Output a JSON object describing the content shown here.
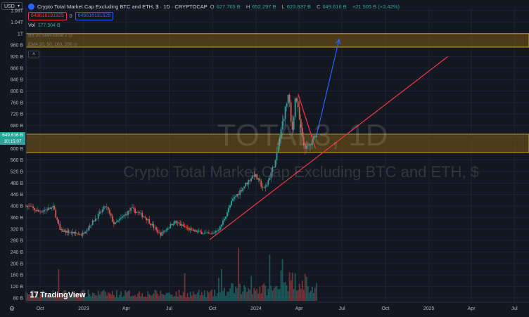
{
  "header": {
    "currency": "USD",
    "title": "Crypto Total Market Cap Excluding BTC and ETH, $ · 1D · CRYPTOCAP",
    "ohlc": [
      {
        "k": "O",
        "v": "627.765 B"
      },
      {
        "k": "H",
        "v": "652.297 B"
      },
      {
        "k": "L",
        "v": "623.837 B"
      },
      {
        "k": "C",
        "v": "649.616 B"
      },
      {
        "k": "",
        "v": "+21.505 B (+3.42%)"
      }
    ],
    "sell_box": "649616191925",
    "spread": "0",
    "buy_box": "649616191925",
    "vol_label": "Vol",
    "vol_value": "177.904 B",
    "indicator_bb": "BB 20 SMA close 2",
    "indicator_ema": "EMA 20, 50, 100, 200",
    "collapse_icon": "chevron-up-icon"
  },
  "watermark": {
    "symbol": "TOTAL3, 1D",
    "description": "Crypto Total Market Cap Excluding BTC and ETH, $"
  },
  "price_tag": {
    "price": "649.616 B",
    "countdown": "10:15:07"
  },
  "logo": "TradingView",
  "colors": {
    "up": "#26a69a",
    "down": "#ef5350",
    "zone": "#7a5a11",
    "zone_border": "#d9a520",
    "trendline": "#f23645",
    "projection": "#2962ff",
    "background": "#131722"
  },
  "chart_data": {
    "type": "candlestick",
    "title": "Crypto Total Market Cap Excluding BTC and ETH, $",
    "x_ticks": [
      "Oct",
      "2023",
      "Apr",
      "Jul",
      "Oct",
      "2024",
      "Apr",
      "Jul",
      "Oct",
      "2025",
      "Apr",
      "Jul"
    ],
    "y_ticks": [
      "80 B",
      "120 B",
      "160 B",
      "200 B",
      "240 B",
      "280 B",
      "320 B",
      "360 B",
      "400 B",
      "440 B",
      "480 B",
      "520 B",
      "560 B",
      "600 B",
      "640 B",
      "680 B",
      "720 B",
      "760 B",
      "800 B",
      "840 B",
      "880 B",
      "920 B",
      "960 B",
      "1T",
      "1.04T",
      "1.08T"
    ],
    "ylim": [
      65,
      1090
    ],
    "timeline_start": "2022-09-01",
    "timeline_end": "2025-08-01",
    "price_path": [
      [
        "2022-09-01",
        405
      ],
      [
        "2022-10-01",
        380
      ],
      [
        "2022-11-01",
        395
      ],
      [
        "2022-11-15",
        315
      ],
      [
        "2022-12-31",
        300
      ],
      [
        "2023-01-31",
        360
      ],
      [
        "2023-02-20",
        400
      ],
      [
        "2023-03-10",
        335
      ],
      [
        "2023-04-15",
        390
      ],
      [
        "2023-05-15",
        360
      ],
      [
        "2023-06-15",
        300
      ],
      [
        "2023-07-15",
        345
      ],
      [
        "2023-08-20",
        315
      ],
      [
        "2023-10-01",
        300
      ],
      [
        "2023-10-20",
        325
      ],
      [
        "2023-11-15",
        420
      ],
      [
        "2023-12-10",
        470
      ],
      [
        "2023-12-31",
        510
      ],
      [
        "2024-01-22",
        455
      ],
      [
        "2024-02-15",
        560
      ],
      [
        "2024-03-01",
        700
      ],
      [
        "2024-03-13",
        790
      ],
      [
        "2024-03-20",
        650
      ],
      [
        "2024-03-28",
        790
      ],
      [
        "2024-04-12",
        620
      ],
      [
        "2024-04-20",
        600
      ],
      [
        "2024-05-01",
        620
      ],
      [
        "2024-05-08",
        650
      ]
    ],
    "volume_scale_note": "relative",
    "support_zone": [
      586,
      650
    ],
    "upper_zone": [
      953,
      1000
    ],
    "trendline": {
      "from": [
        "2023-09-25",
        283
      ],
      "to": [
        "2025-02-10",
        920
      ]
    },
    "local_trendline": {
      "from": [
        "2024-03-30",
        790
      ],
      "to": [
        "2024-05-06",
        600
      ]
    },
    "projection": [
      [
        "2024-05-08",
        645
      ],
      [
        "2024-06-25",
        980
      ]
    ],
    "last_price": 649.616
  }
}
